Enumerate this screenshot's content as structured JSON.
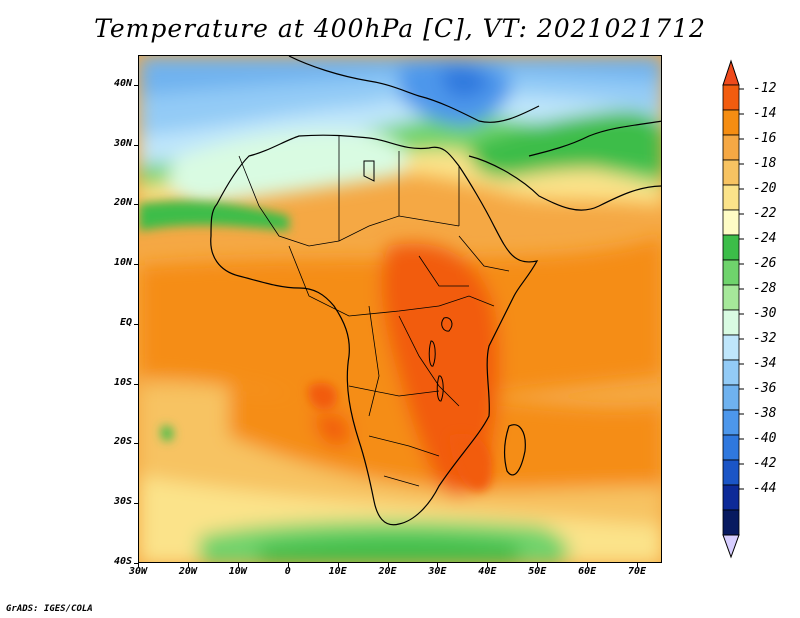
{
  "title": "Temperature at 400hPa [C], VT: 2021021712",
  "credit": "GrADS: IGES/COLA",
  "map": {
    "lon_range": [
      -30,
      75
    ],
    "lat_range": [
      -40,
      45
    ],
    "lat_ticks": [
      {
        "value": 40,
        "label": "40N"
      },
      {
        "value": 30,
        "label": "30N"
      },
      {
        "value": 20,
        "label": "20N"
      },
      {
        "value": 10,
        "label": "10N"
      },
      {
        "value": 0,
        "label": "EQ"
      },
      {
        "value": -10,
        "label": "10S"
      },
      {
        "value": -20,
        "label": "20S"
      },
      {
        "value": -30,
        "label": "30S"
      },
      {
        "value": -40,
        "label": "40S"
      }
    ],
    "lon_ticks": [
      {
        "value": -30,
        "label": "30W"
      },
      {
        "value": -20,
        "label": "20W"
      },
      {
        "value": -10,
        "label": "10W"
      },
      {
        "value": 0,
        "label": "0"
      },
      {
        "value": 10,
        "label": "10E"
      },
      {
        "value": 20,
        "label": "20E"
      },
      {
        "value": 30,
        "label": "30E"
      },
      {
        "value": 40,
        "label": "40E"
      },
      {
        "value": 50,
        "label": "50E"
      },
      {
        "value": 60,
        "label": "60E"
      },
      {
        "value": 70,
        "label": "70E"
      }
    ]
  },
  "colorbar": {
    "labels": [
      "-12",
      "-14",
      "-16",
      "-18",
      "-20",
      "-22",
      "-24",
      "-26",
      "-28",
      "-30",
      "-32",
      "-34",
      "-36",
      "-38",
      "-40",
      "-42",
      "-44"
    ],
    "top_arrow_color": "#ef4a1c",
    "bottom_arrow_color": "#d7ceff",
    "colors": [
      "#f25c0f",
      "#f58d12",
      "#f5a844",
      "#f7c362",
      "#fbe38a",
      "#fefcc5",
      "#3cbd49",
      "#6fd36c",
      "#a6e89a",
      "#d9fbe2",
      "#bfe6fb",
      "#93cbf6",
      "#6fb2ef",
      "#4d97eb",
      "#2f78de",
      "#1b55c6",
      "#0d2a98",
      "#081a60"
    ]
  }
}
